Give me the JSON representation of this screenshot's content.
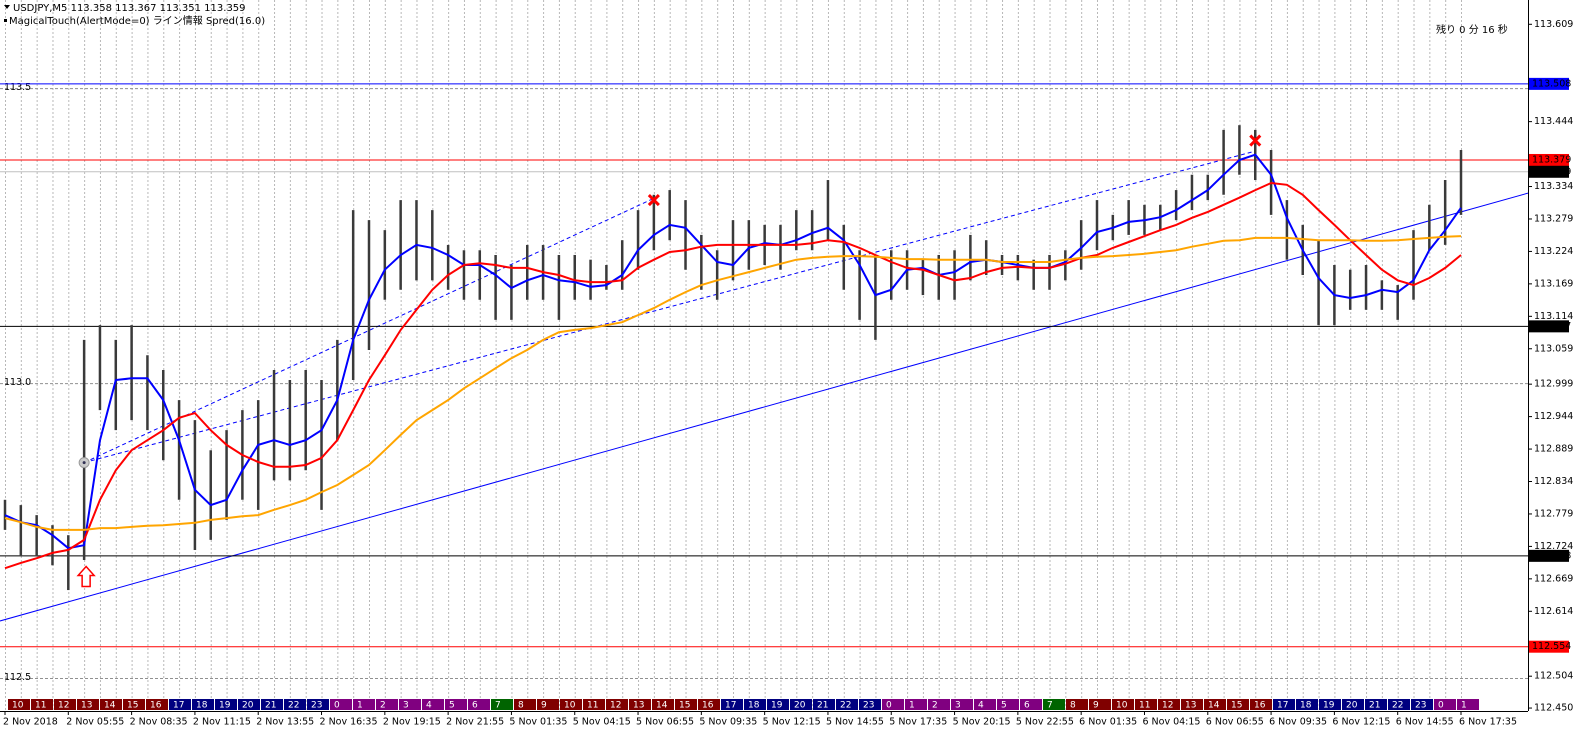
{
  "header": {
    "symbol_line": "USDJPY,M5  113.358 113.367 113.351 113.359",
    "indicator_line": "MagicalTouch(AlertMode=0) ライン情報 Spred(16.0)",
    "timer": "残り 0 分 16 秒"
  },
  "chart_data": {
    "type": "ohlc",
    "categories": [
      "2 Nov 2018",
      null,
      null,
      null,
      "2 Nov 05:55",
      null,
      null,
      null,
      "2 Nov 08:35",
      null,
      null,
      null,
      "2 Nov 11:15",
      null,
      null,
      null,
      "2 Nov 13:55",
      null,
      null,
      null,
      "2 Nov 16:35",
      null,
      null,
      null,
      "2 Nov 19:15",
      null,
      null,
      null,
      "2 Nov 21:55",
      null,
      null,
      null,
      "5 Nov 01:35",
      null,
      null,
      null,
      "5 Nov 04:15",
      null,
      null,
      null,
      "5 Nov 06:55",
      null,
      null,
      null,
      "5 Nov 09:35",
      null,
      null,
      null,
      "5 Nov 12:15",
      null,
      null,
      null,
      "5 Nov 14:55",
      null,
      null,
      null,
      "5 Nov 17:35",
      null,
      null,
      null,
      "5 Nov 20:15",
      null,
      null,
      null,
      "5 Nov 22:55",
      null,
      null,
      null,
      "6 Nov 01:35",
      null,
      null,
      null,
      "6 Nov 04:15",
      null,
      null,
      null,
      "6 Nov 06:55",
      null,
      null,
      null,
      "6 Nov 09:35",
      null,
      null,
      null,
      "6 Nov 12:15",
      null,
      null,
      null,
      "6 Nov 14:55",
      null,
      null,
      null,
      "6 Nov 17:35"
    ],
    "high": [
      112.803,
      112.794,
      112.777,
      112.76,
      112.743,
      113.074,
      113.099,
      113.074,
      113.099,
      113.048,
      113.023,
      112.972,
      112.938,
      112.887,
      112.921,
      112.955,
      112.972,
      113.023,
      113.006,
      113.023,
      113.006,
      113.074,
      113.294,
      113.277,
      113.26,
      113.311,
      113.311,
      113.294,
      113.235,
      113.226,
      113.226,
      113.218,
      113.201,
      113.235,
      113.235,
      113.218,
      113.218,
      113.21,
      113.201,
      113.243,
      113.294,
      113.32,
      113.328,
      113.311,
      113.252,
      113.226,
      113.277,
      113.277,
      113.269,
      113.269,
      113.294,
      113.294,
      113.345,
      113.269,
      113.226,
      113.218,
      113.226,
      113.226,
      113.21,
      113.218,
      113.226,
      113.252,
      113.243,
      113.218,
      113.218,
      113.21,
      113.218,
      113.226,
      113.277,
      113.311,
      113.286,
      113.311,
      113.303,
      113.303,
      113.328,
      113.354,
      113.354,
      113.43,
      113.438,
      113.43,
      113.396,
      113.311,
      113.269,
      113.243,
      113.201,
      113.193,
      113.201,
      113.175,
      113.167,
      113.26,
      113.303,
      113.345,
      113.396
    ],
    "low": [
      112.752,
      112.709,
      112.709,
      112.692,
      112.65,
      112.701,
      112.955,
      112.921,
      112.938,
      112.921,
      112.87,
      112.803,
      112.718,
      112.735,
      112.769,
      112.803,
      112.786,
      112.836,
      112.836,
      112.853,
      112.786,
      112.904,
      113.006,
      113.057,
      113.142,
      113.159,
      113.175,
      113.175,
      113.159,
      113.142,
      113.142,
      113.108,
      113.108,
      113.142,
      113.142,
      113.108,
      113.142,
      113.142,
      113.159,
      113.159,
      113.193,
      113.226,
      113.243,
      113.193,
      113.159,
      113.142,
      113.175,
      113.193,
      113.201,
      113.193,
      113.226,
      113.226,
      113.243,
      113.159,
      113.108,
      113.074,
      113.142,
      113.159,
      113.15,
      113.142,
      113.142,
      113.175,
      113.184,
      113.184,
      113.175,
      113.159,
      113.159,
      113.175,
      113.193,
      113.226,
      113.243,
      113.252,
      113.252,
      113.26,
      113.277,
      113.294,
      113.311,
      113.32,
      113.354,
      113.345,
      113.286,
      113.21,
      113.184,
      113.099,
      113.099,
      113.125,
      113.125,
      113.125,
      113.108,
      113.142,
      113.226,
      113.235,
      113.286
    ],
    "price_color": "#3a3a3a",
    "lines": [
      {
        "color": "#0000ff",
        "values": [
          112.777,
          112.765,
          112.76,
          112.743,
          112.721,
          112.726,
          112.904,
          113.006,
          113.009,
          113.009,
          112.972,
          112.904,
          112.82,
          112.794,
          112.803,
          112.853,
          112.896,
          112.904,
          112.896,
          112.904,
          112.921,
          112.972,
          113.074,
          113.142,
          113.193,
          113.218,
          113.235,
          113.23,
          113.218,
          113.201,
          113.201,
          113.184,
          113.162,
          113.175,
          113.184,
          113.175,
          113.172,
          113.164,
          113.167,
          113.184,
          113.226,
          113.252,
          113.269,
          113.264,
          113.235,
          113.206,
          113.201,
          113.23,
          113.238,
          113.235,
          113.243,
          113.255,
          113.264,
          113.243,
          113.201,
          113.15,
          113.159,
          113.193,
          113.196,
          113.184,
          113.189,
          113.206,
          113.21,
          113.206,
          113.201,
          113.196,
          113.196,
          113.206,
          113.23,
          113.257,
          113.264,
          113.274,
          113.277,
          113.282,
          113.294,
          113.311,
          113.328,
          113.354,
          113.379,
          113.388,
          113.354,
          113.281,
          113.226,
          113.179,
          113.15,
          113.145,
          113.15,
          113.159,
          113.155,
          113.175,
          113.226,
          113.26,
          113.298
        ]
      },
      {
        "color": "#ff0000",
        "values": [
          112.687,
          112.696,
          112.704,
          112.713,
          112.718,
          112.735,
          112.803,
          112.853,
          112.887,
          112.904,
          112.921,
          112.942,
          112.95,
          112.921,
          112.896,
          112.879,
          112.867,
          112.859,
          112.859,
          112.862,
          112.874,
          112.904,
          112.955,
          113.006,
          113.048,
          113.091,
          113.125,
          113.159,
          113.184,
          113.201,
          113.204,
          113.201,
          113.196,
          113.196,
          113.189,
          113.184,
          113.175,
          113.172,
          113.172,
          113.175,
          113.196,
          113.21,
          113.223,
          113.226,
          113.232,
          113.235,
          113.235,
          113.235,
          113.235,
          113.235,
          113.235,
          113.238,
          113.243,
          113.24,
          113.23,
          113.218,
          113.206,
          113.196,
          113.193,
          113.184,
          113.175,
          113.179,
          113.189,
          113.196,
          113.198,
          113.196,
          113.196,
          113.203,
          113.213,
          113.218,
          113.23,
          113.24,
          113.25,
          113.26,
          113.269,
          113.281,
          113.291,
          113.303,
          113.315,
          113.328,
          113.34,
          113.337,
          113.32,
          113.294,
          113.269,
          113.243,
          113.218,
          113.193,
          113.175,
          113.167,
          113.179,
          113.196,
          113.218
        ]
      },
      {
        "color": "#ffa500",
        "values": [
          112.772,
          112.765,
          112.757,
          112.752,
          112.752,
          112.752,
          112.755,
          112.755,
          112.757,
          112.759,
          112.76,
          112.762,
          112.764,
          112.769,
          112.772,
          112.775,
          112.777,
          112.786,
          112.794,
          112.803,
          112.816,
          112.828,
          112.845,
          112.862,
          112.887,
          112.913,
          112.938,
          112.955,
          112.972,
          112.992,
          113.009,
          113.026,
          113.043,
          113.057,
          113.074,
          113.087,
          113.091,
          113.094,
          113.099,
          113.104,
          113.116,
          113.128,
          113.142,
          113.155,
          113.167,
          113.175,
          113.182,
          113.189,
          113.196,
          113.203,
          113.21,
          113.213,
          113.215,
          113.216,
          113.216,
          113.215,
          113.213,
          113.211,
          113.211,
          113.21,
          113.21,
          113.21,
          113.21,
          113.206,
          113.206,
          113.206,
          113.206,
          113.21,
          113.213,
          113.215,
          113.216,
          113.218,
          113.22,
          113.223,
          113.226,
          113.232,
          113.237,
          113.242,
          113.243,
          113.247,
          113.247,
          113.247,
          113.245,
          113.243,
          113.243,
          113.243,
          113.242,
          113.242,
          113.243,
          113.245,
          113.247,
          113.249,
          113.25
        ]
      }
    ],
    "ylim": [
      112.445,
      113.64
    ],
    "yticks": [
      113.609,
      113.444,
      113.334,
      113.279,
      113.224,
      113.169,
      113.114,
      113.059,
      112.999,
      112.944,
      112.889,
      112.834,
      112.779,
      112.724,
      112.669,
      112.614,
      112.504,
      {
        "value": 112.45,
        "label": "112.450"
      }
    ],
    "round_levels": [
      113.5,
      {
        "value": 113,
        "label": "113.0"
      },
      112.5
    ],
    "levels": [
      {
        "value": 113.508,
        "color": "#0000ff",
        "box": "#0000ff"
      },
      {
        "value": 113.379,
        "color": "#ff0000",
        "box": "#ff0000"
      },
      {
        "value": 113.359,
        "color": "#c0c0c0",
        "box": "#000000"
      },
      {
        "value": 113.097,
        "color": "#000000",
        "box": "#000000"
      },
      {
        "value": 112.708,
        "color": "#000000",
        "box": "#000000"
      },
      {
        "value": 112.554,
        "color": "#ff0000",
        "box": "#ff0000"
      }
    ],
    "trendlines": [
      {
        "color": "#0000ff",
        "dashed": false,
        "from": [
          0,
          112.6
        ],
        "to": [
          92,
          113.291
        ]
      },
      {
        "color": "#0000ff",
        "dashed": true,
        "from": [
          5,
          112.866
        ],
        "to": [
          79,
          113.394
        ]
      },
      {
        "color": "#0000ff",
        "dashed": true,
        "from": [
          5,
          112.866
        ],
        "to": [
          41,
          113.314
        ]
      }
    ],
    "crosses": [
      [
        41,
        113.311
      ],
      [
        79,
        113.412
      ]
    ],
    "arrows": [
      [
        5,
        112.69
      ]
    ],
    "anchors": [
      [
        5,
        112.866
      ]
    ],
    "grid": true,
    "hours": [
      10,
      11,
      12,
      13,
      14,
      15,
      16,
      17,
      18,
      19,
      20,
      21,
      22,
      23,
      0,
      1,
      2,
      3,
      4,
      5,
      6,
      7,
      8,
      9,
      10,
      11,
      12,
      13,
      14,
      15,
      16,
      17,
      18,
      19,
      20,
      21,
      22,
      23,
      0,
      1,
      2,
      3,
      4,
      5,
      6,
      7,
      8,
      9,
      10,
      11,
      12,
      13,
      14,
      15,
      16,
      17,
      18,
      19,
      20,
      21,
      22,
      23,
      0,
      1
    ]
  }
}
